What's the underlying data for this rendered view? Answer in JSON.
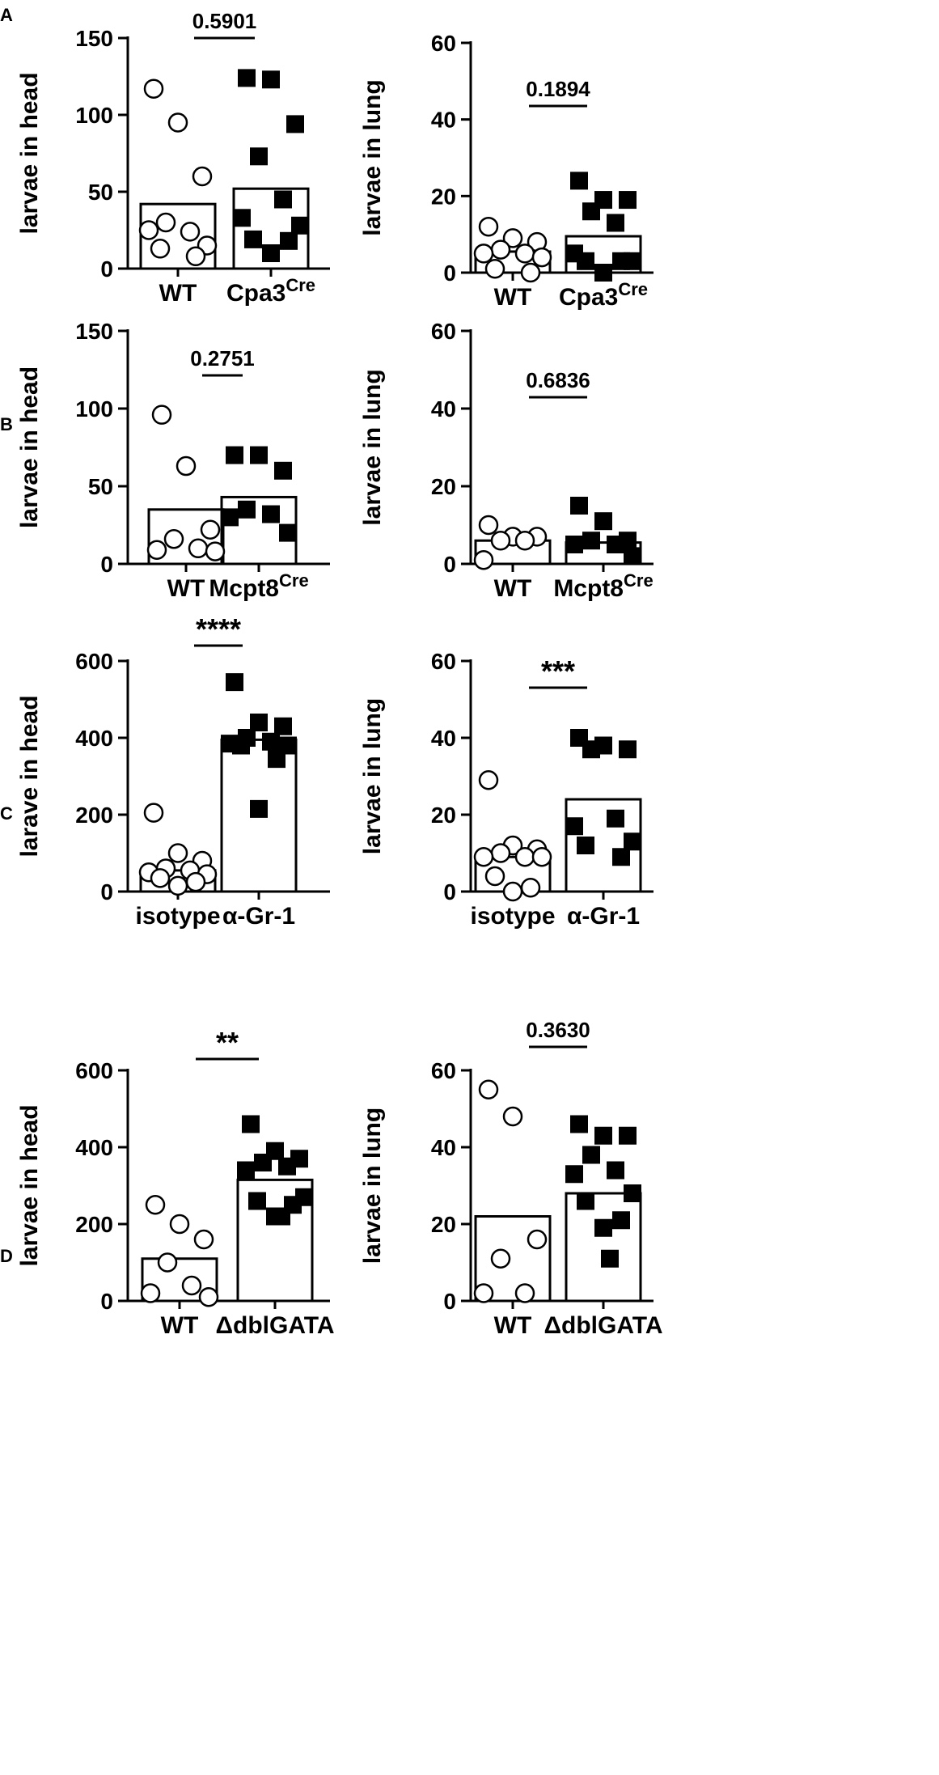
{
  "figure": {
    "panels": [
      {
        "id": "panel-a",
        "letter": "A"
      },
      {
        "id": "panel-b",
        "letter": "B"
      },
      {
        "id": "panel-c",
        "letter": "C"
      },
      {
        "id": "panel-d",
        "letter": "D"
      }
    ]
  },
  "chart_data": [
    {
      "panel": "A",
      "type": "bar",
      "title": "",
      "ylabel": "larvae in head",
      "ylim": [
        0,
        150
      ],
      "yticks": [
        0,
        50,
        100,
        150
      ],
      "categories": [
        "WT",
        "Cpa3^Cre"
      ],
      "bar_values": [
        42,
        52
      ],
      "points": [
        [
          117,
          95,
          60,
          30,
          24,
          25,
          15,
          13,
          8
        ],
        [
          124,
          123,
          94,
          73,
          45,
          33,
          28,
          19,
          18,
          10
        ]
      ],
      "marker_styles": [
        "open-circle",
        "filled-square"
      ],
      "significance": "0.5901",
      "grid": false
    },
    {
      "panel": "A",
      "type": "bar",
      "title": "",
      "ylabel": "larvae in lung",
      "ylim": [
        0,
        60
      ],
      "yticks": [
        0,
        20,
        40,
        60
      ],
      "categories": [
        "WT",
        "Cpa3^Cre"
      ],
      "bar_values": [
        5.5,
        9.5
      ],
      "points": [
        [
          12,
          9,
          8,
          6,
          5,
          5,
          4,
          1,
          0
        ],
        [
          24,
          19,
          19,
          16,
          13,
          5,
          3,
          3,
          3,
          0
        ]
      ],
      "marker_styles": [
        "open-circle",
        "filled-square"
      ],
      "significance": "0.1894",
      "grid": false
    },
    {
      "panel": "B",
      "type": "bar",
      "title": "",
      "ylabel": "larvae in head",
      "ylim": [
        0,
        150
      ],
      "yticks": [
        0,
        50,
        100,
        150
      ],
      "categories": [
        "WT",
        "Mcpt8^Cre"
      ],
      "bar_values": [
        35,
        43
      ],
      "points": [
        [
          96,
          63,
          22,
          16,
          10,
          9,
          8
        ],
        [
          70,
          70,
          60,
          35,
          32,
          30,
          20
        ]
      ],
      "marker_styles": [
        "open-circle",
        "filled-square"
      ],
      "significance": "0.2751",
      "grid": false
    },
    {
      "panel": "B",
      "type": "bar",
      "title": "",
      "ylabel": "larvae in lung",
      "ylim": [
        0,
        60
      ],
      "yticks": [
        0,
        20,
        40,
        60
      ],
      "categories": [
        "WT",
        "Mcpt8^Cre"
      ],
      "bar_values": [
        6,
        5.5
      ],
      "points": [
        [
          10,
          7,
          7,
          6,
          6,
          1
        ],
        [
          15,
          11,
          6,
          6,
          5,
          5,
          2
        ]
      ],
      "marker_styles": [
        "open-circle",
        "filled-square"
      ],
      "significance": "0.6836",
      "grid": false
    },
    {
      "panel": "C",
      "type": "bar",
      "title": "",
      "ylabel": "larave in head",
      "ylim": [
        0,
        600
      ],
      "yticks": [
        0,
        200,
        400,
        600
      ],
      "categories": [
        "isotype",
        "α-Gr-1"
      ],
      "bar_values": [
        55,
        395
      ],
      "points": [
        [
          205,
          100,
          80,
          60,
          55,
          50,
          45,
          35,
          25,
          15
        ],
        [
          545,
          440,
          430,
          400,
          390,
          385,
          380,
          380,
          345,
          215
        ]
      ],
      "marker_styles": [
        "open-circle",
        "filled-square"
      ],
      "significance": "****",
      "grid": false
    },
    {
      "panel": "C",
      "type": "bar",
      "title": "",
      "ylabel": "larvae in lung",
      "ylim": [
        0,
        60
      ],
      "yticks": [
        0,
        20,
        40,
        60
      ],
      "categories": [
        "isotype",
        "α-Gr-1"
      ],
      "bar_values": [
        9,
        24
      ],
      "points": [
        [
          29,
          12,
          11,
          10,
          9,
          9,
          9,
          4,
          1,
          0
        ],
        [
          40,
          38,
          37,
          37,
          19,
          17,
          13,
          12,
          9
        ]
      ],
      "marker_styles": [
        "open-circle",
        "filled-square"
      ],
      "significance": "***",
      "grid": false
    },
    {
      "panel": "D",
      "type": "bar",
      "title": "",
      "ylabel": "larvae in head",
      "ylim": [
        0,
        600
      ],
      "yticks": [
        0,
        200,
        400,
        600
      ],
      "categories": [
        "WT",
        "ΔdblGATA"
      ],
      "bar_values": [
        110,
        315
      ],
      "points": [
        [
          250,
          200,
          160,
          100,
          40,
          20,
          10
        ],
        [
          460,
          390,
          370,
          360,
          350,
          340,
          270,
          260,
          250,
          220,
          220
        ]
      ],
      "marker_styles": [
        "open-circle",
        "filled-square"
      ],
      "significance": "**",
      "grid": false
    },
    {
      "panel": "D",
      "type": "bar",
      "title": "",
      "ylabel": "larvae in lung",
      "ylim": [
        0,
        60
      ],
      "yticks": [
        0,
        20,
        40,
        60
      ],
      "categories": [
        "WT",
        "ΔdblGATA"
      ],
      "bar_values": [
        22,
        28
      ],
      "points": [
        [
          55,
          48,
          16,
          11,
          2,
          2
        ],
        [
          46,
          43,
          43,
          38,
          34,
          33,
          28,
          26,
          21,
          19,
          11
        ]
      ],
      "marker_styles": [
        "open-circle",
        "filled-square"
      ],
      "significance": "0.3630",
      "grid": false
    }
  ]
}
